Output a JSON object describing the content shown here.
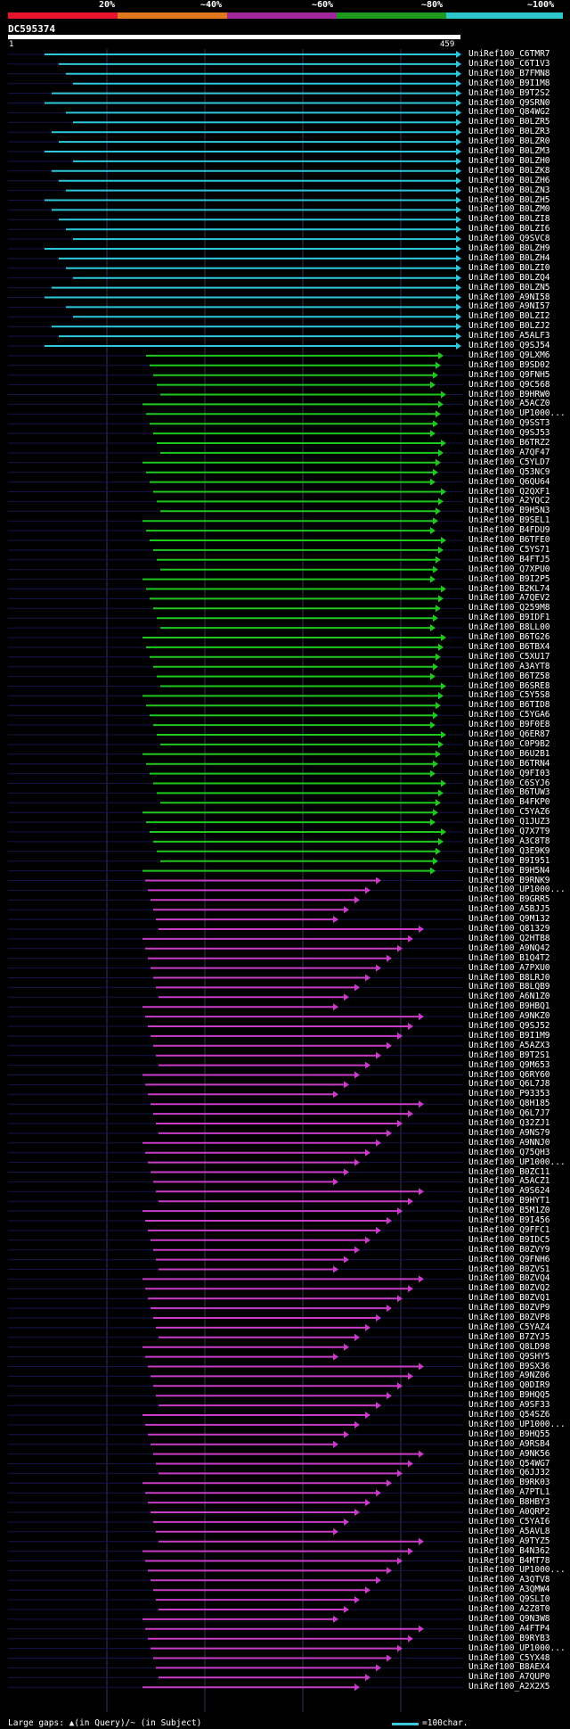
{
  "scale": {
    "labels": [
      "20%",
      "~40%",
      "~60%",
      "~80%",
      "~100%"
    ],
    "colors": [
      "#e8142e",
      "#e0781e",
      "#a0289a",
      "#1e9a1e",
      "#2ec8cc"
    ]
  },
  "query": {
    "name": "DC595374",
    "start": "1",
    "end": "459"
  },
  "footer": {
    "gaps": "Large gaps: ▲(in Query)/~ (in Subject)",
    "legend": "=100char."
  },
  "hits": [
    "UniRef100_C6TMR7",
    "UniRef100_C6T1V3",
    "UniRef100_B7FMN8",
    "UniRef100_B9I1M8",
    "UniRef100_B9T2S2",
    "UniRef100_Q9SRN0",
    "UniRef100_Q84WG2",
    "UniRef100_B0LZR5",
    "UniRef100_B0LZR3",
    "UniRef100_B0LZR0",
    "UniRef100_B0LZM3",
    "UniRef100_B0LZH0",
    "UniRef100_B0LZK8",
    "UniRef100_B0LZH6",
    "UniRef100_B0LZN3",
    "UniRef100_B0LZH5",
    "UniRef100_B0LZM0",
    "UniRef100_B0LZI8",
    "UniRef100_B0LZI6",
    "UniRef100_Q9SVC8",
    "UniRef100_B0LZH9",
    "UniRef100_B0LZH4",
    "UniRef100_B0LZI0",
    "UniRef100_B0LZQ4",
    "UniRef100_B0LZN5",
    "UniRef100_A9NI58",
    "UniRef100_A9NI57",
    "UniRef100_B0LZI2",
    "UniRef100_B0LZJ2",
    "UniRef100_A5ALF3",
    "UniRef100_Q9SJ54",
    "UniRef100_Q9LXM6",
    "UniRef100_B9SD02",
    "UniRef100_Q9FNH5",
    "UniRef100_Q9C568",
    "UniRef100_B9HRW0",
    "UniRef100_A5ACZ0",
    "UniRef100_UP1000...",
    "UniRef100_Q9SST3",
    "UniRef100_Q9SJ53",
    "UniRef100_B6TRZ2",
    "UniRef100_A7QF47",
    "UniRef100_C5YLD7",
    "UniRef100_Q53NC9",
    "UniRef100_Q6QU64",
    "UniRef100_Q2QXF1",
    "UniRef100_A2YQC2",
    "UniRef100_B9H5N3",
    "UniRef100_B9SEL1",
    "UniRef100_B4FDU9",
    "UniRef100_B6TFE0",
    "UniRef100_C5YS71",
    "UniRef100_B4FTJ5",
    "UniRef100_Q7XPU0",
    "UniRef100_B9I2P5",
    "UniRef100_B2KL74",
    "UniRef100_A7QEV2",
    "UniRef100_Q259M8",
    "UniRef100_B9IDF1",
    "UniRef100_B8LL00",
    "UniRef100_B6TG26",
    "UniRef100_B6TBX4",
    "UniRef100_C5XU17",
    "UniRef100_A3AYT8",
    "UniRef100_B6TZ58",
    "UniRef100_B6SRE8",
    "UniRef100_C5Y5S8",
    "UniRef100_B6TID8",
    "UniRef100_C5YGA6",
    "UniRef100_B9F0E8",
    "UniRef100_Q6ER87",
    "UniRef100_C0P9B2",
    "UniRef100_B6U2B1",
    "UniRef100_B6TRN4",
    "UniRef100_Q9FI03",
    "UniRef100_C6SYJ6",
    "UniRef100_B6TUW3",
    "UniRef100_B4FKP0",
    "UniRef100_C5YAZ6",
    "UniRef100_Q1JUZ3",
    "UniRef100_Q7X7T9",
    "UniRef100_A3C8T8",
    "UniRef100_Q3E9K9",
    "UniRef100_B9I951",
    "UniRef100_B9H5N4",
    "UniRef100_B9RNK9",
    "UniRef100_UP1000...",
    "UniRef100_B9GRR5",
    "UniRef100_A5BJJ5",
    "UniRef100_Q9M132",
    "UniRef100_Q81329",
    "UniRef100_Q2HTB8",
    "UniRef100_A9NQ42",
    "UniRef100_B1Q4T2",
    "UniRef100_A7PXU0",
    "UniRef100_B8LRJ0",
    "UniRef100_B8LQB9",
    "UniRef100_A6N1Z0",
    "UniRef100_B9HBQ1",
    "UniRef100_A9NKZ0",
    "UniRef100_Q9SJ52",
    "UniRef100_B9I1M9",
    "UniRef100_A5AZX3",
    "UniRef100_B9T2S1",
    "UniRef100_Q9M653",
    "UniRef100_Q6RY60",
    "UniRef100_Q6L7J8",
    "UniRef100_P93353",
    "UniRef100_Q8H185",
    "UniRef100_Q6L7J7",
    "UniRef100_Q32ZJ1",
    "UniRef100_A9NS79",
    "UniRef100_A9NNJ0",
    "UniRef100_Q75QH3",
    "UniRef100_UP1000...",
    "UniRef100_B0ZC11",
    "UniRef100_A5ACZ1",
    "UniRef100_A9S624",
    "UniRef100_B9HYT1",
    "UniRef100_B5M1Z0",
    "UniRef100_B9I456",
    "UniRef100_Q9FFC1",
    "UniRef100_B9IDC5",
    "UniRef100_B0ZVY9",
    "UniRef100_Q9FNH6",
    "UniRef100_B0ZVS1",
    "UniRef100_B0ZVQ4",
    "UniRef100_B0ZVQ2",
    "UniRef100_B0ZVQ1",
    "UniRef100_B0ZVP9",
    "UniRef100_B0ZVP8",
    "UniRef100_C5YAZ4",
    "UniRef100_B7ZYJ5",
    "UniRef100_Q8LD98",
    "UniRef100_Q9SHY5",
    "UniRef100_B9SX36",
    "UniRef100_A9NZ06",
    "UniRef100_Q0DIR9",
    "UniRef100_B9HQQ5",
    "UniRef100_A9SF33",
    "UniRef100_Q54SZ6",
    "UniRef100_UP1000...",
    "UniRef100_B9HQ55",
    "UniRef100_A9RSB4",
    "UniRef100_A9NK56",
    "UniRef100_Q54WG7",
    "UniRef100_Q6JJ32",
    "UniRef100_B9RK03",
    "UniRef100_A7PTL1",
    "UniRef100_B8HBY3",
    "UniRef100_A0QRP2",
    "UniRef100_C5YAI6",
    "UniRef100_A5AVL8",
    "UniRef100_A9TYZ5",
    "UniRef100_B4N362",
    "UniRef100_B4MT78",
    "UniRef100_UP1000...",
    "UniRef100_A3QTV8",
    "UniRef100_A3QMW4",
    "UniRef100_Q9SLI0",
    "UniRef100_A2Z8T0",
    "UniRef100_Q9N3W8",
    "UniRef100_A4FTP4",
    "UniRef100_B9RYB3",
    "UniRef100_UP1000...",
    "UniRef100_C5YX48",
    "UniRef100_B8AEX4",
    "UniRef100_A7QUP0",
    "UniRef100_A2X2X5"
  ]
}
